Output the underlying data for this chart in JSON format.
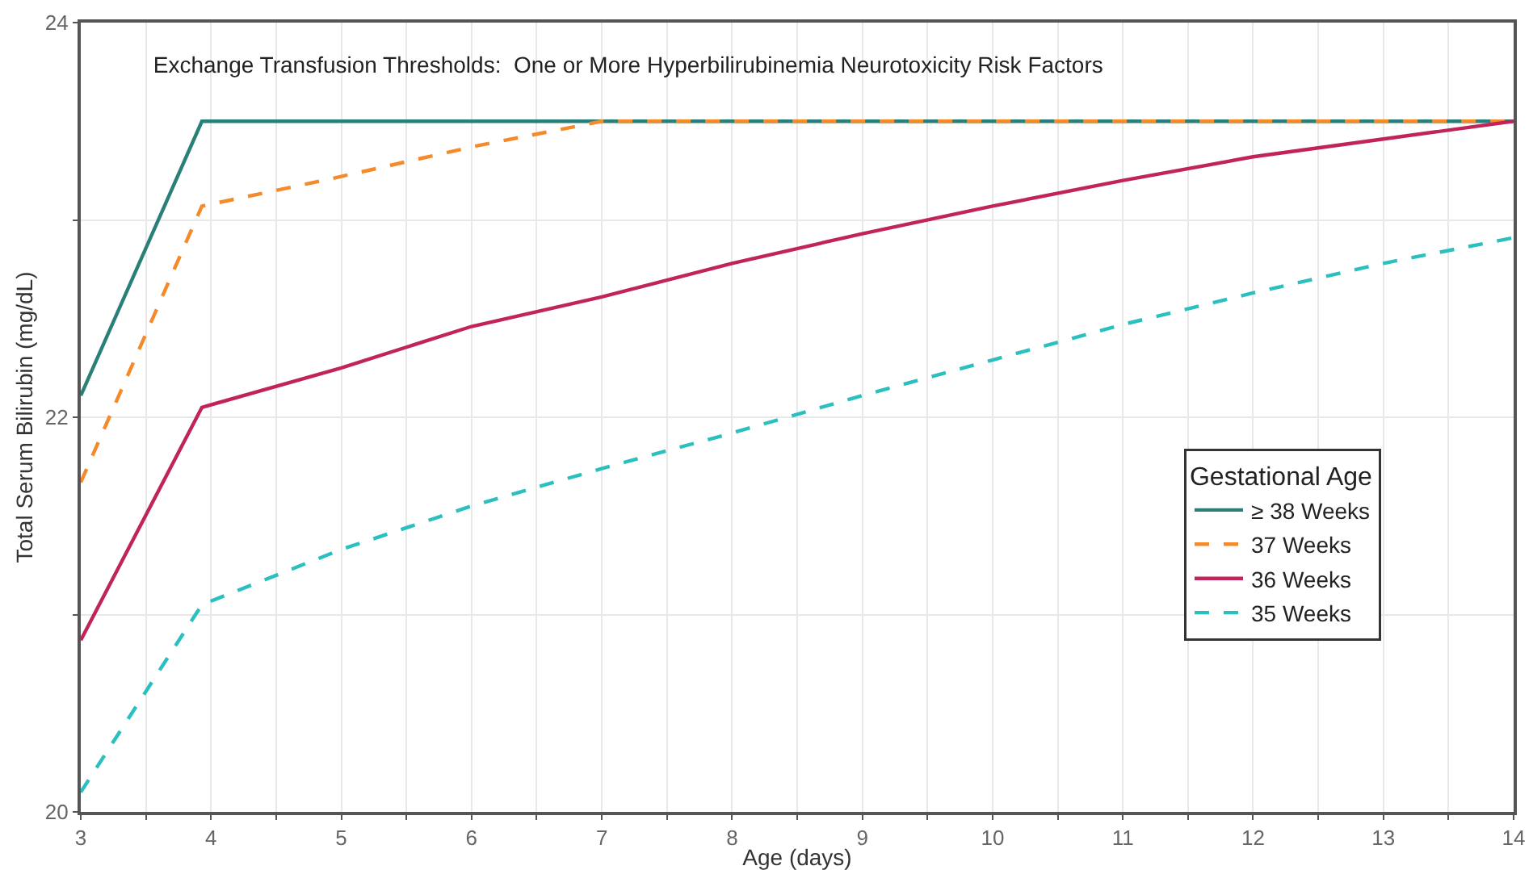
{
  "chart_data": {
    "type": "line",
    "title": "Exchange Transfusion Thresholds:  One or More Hyperbilirubinemia Neurotoxicity Risk Factors",
    "xlabel": "Age (days)",
    "ylabel": "Total Serum Bilirubin (mg/dL)",
    "legend_title": "Gestational Age",
    "legend": "right",
    "grid": true,
    "marker": "none",
    "xlim": [
      3,
      14
    ],
    "ylim": [
      20,
      24
    ],
    "xticks": [
      3,
      {
        "value": 3.5,
        "label": null
      },
      4,
      {
        "value": 4.5,
        "label": null
      },
      5,
      {
        "value": 5.5,
        "label": null
      },
      6,
      {
        "value": 6.5,
        "label": null
      },
      7,
      {
        "value": 7.5,
        "label": null
      },
      8,
      {
        "value": 8.5,
        "label": null
      },
      9,
      {
        "value": 9.5,
        "label": null
      },
      10,
      {
        "value": 10.5,
        "label": null
      },
      11,
      {
        "value": 11.5,
        "label": null
      },
      12,
      {
        "value": 12.5,
        "label": null
      },
      13,
      {
        "value": 13.5,
        "label": null
      },
      14
    ],
    "yticks": [
      20,
      {
        "value": 21,
        "label": null
      },
      22,
      {
        "value": 23,
        "label": null
      },
      24
    ],
    "series": [
      {
        "name": "≥ 38 Weeks",
        "color": "#2a7f78",
        "line_style": "solid",
        "x": [
          3,
          3.93,
          14
        ],
        "values": [
          22.11,
          23.5,
          23.5
        ]
      },
      {
        "name": "37 Weeks",
        "color": "#f58a2a",
        "line_style": "dashed",
        "x": [
          3,
          3.93,
          5,
          6,
          7,
          14
        ],
        "values": [
          21.67,
          23.07,
          23.22,
          23.37,
          23.5,
          23.5
        ]
      },
      {
        "name": "36 Weeks",
        "color": "#c0245a",
        "line_style": "solid",
        "x": [
          3,
          3.93,
          5,
          6,
          7,
          8,
          9,
          10,
          11,
          12,
          13,
          14
        ],
        "values": [
          20.87,
          22.05,
          22.25,
          22.46,
          22.61,
          22.78,
          22.93,
          23.07,
          23.2,
          23.32,
          23.41,
          23.5
        ]
      },
      {
        "name": "35 Weeks",
        "color": "#2bbfbf",
        "line_style": "dashed",
        "x": [
          3,
          3.93,
          5,
          6,
          7,
          8,
          9,
          10,
          11,
          12,
          13,
          14
        ],
        "values": [
          20.1,
          21.05,
          21.33,
          21.55,
          21.74,
          21.92,
          22.11,
          22.29,
          22.47,
          22.63,
          22.78,
          22.91
        ]
      }
    ]
  }
}
